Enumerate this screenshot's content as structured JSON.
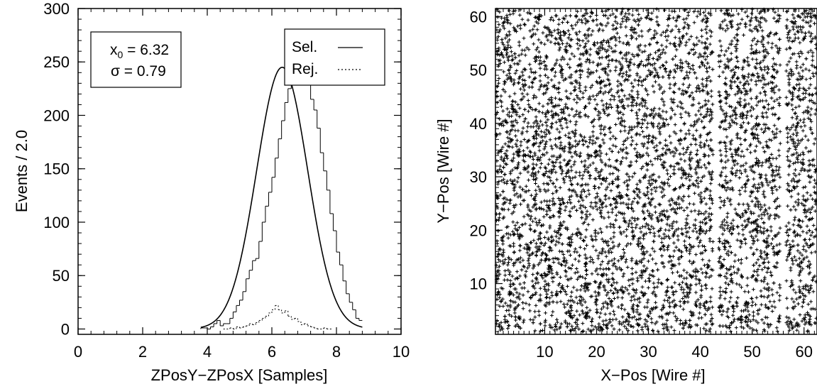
{
  "chart_data": [
    {
      "type": "histogram",
      "xlabel": "ZPosY−ZPosX [Samples]",
      "ylabel": "Events / 2.0",
      "xlim": [
        0,
        10
      ],
      "ylim": [
        -5,
        300
      ],
      "x_ticks": [
        0,
        2,
        4,
        6,
        8,
        10
      ],
      "x_tick_labels": [
        "0",
        "2",
        "4",
        "6",
        "8",
        "10"
      ],
      "y_ticks": [
        0,
        50,
        100,
        150,
        200,
        250,
        300
      ],
      "y_tick_labels": [
        "0",
        "50",
        "100",
        "150",
        "200",
        "250",
        "300"
      ],
      "stats_box": {
        "x0_symbol": "x",
        "x0_subscript": "0",
        "x0_text": " = 6.32",
        "sigma_text": "σ = 0.79"
      },
      "legend": {
        "position": "top-right",
        "entries": [
          {
            "label": "Sel.",
            "style": "solid"
          },
          {
            "label": "Rej.",
            "style": "dotted"
          }
        ]
      },
      "fit": {
        "name": "Sel.",
        "mean": 6.32,
        "sigma": 0.79,
        "amplitude": 245,
        "x_range": [
          3.8,
          8.8
        ]
      },
      "series": [
        {
          "name": "Sel.",
          "style": "histogram",
          "bin_width": 0.1,
          "x_start": 3.8,
          "values": [
            1,
            1,
            0,
            2,
            5,
            8,
            3,
            5,
            5,
            10,
            16,
            22,
            27,
            35,
            47,
            55,
            64,
            66,
            82,
            100,
            115,
            128,
            142,
            160,
            178,
            195,
            212,
            225,
            240,
            258,
            245,
            250,
            232,
            240,
            215,
            205,
            188,
            165,
            148,
            130,
            108,
            92,
            72,
            60,
            45,
            33,
            25,
            18,
            10,
            8
          ]
        },
        {
          "name": "Rej.",
          "style": "dotted",
          "bin_width": 0.1,
          "x_start": 4.5,
          "values": [
            0,
            0,
            1,
            0,
            2,
            1,
            2,
            3,
            5,
            4,
            6,
            8,
            10,
            12,
            15,
            18,
            22,
            18,
            15,
            17,
            12,
            9,
            10,
            7,
            4,
            5,
            3,
            2,
            1,
            0,
            0,
            1,
            0,
            0
          ]
        }
      ]
    },
    {
      "type": "scatter",
      "xlabel": "X−Pos [Wire #]",
      "ylabel": "Y−Pos [Wire #]",
      "xlim": [
        0.5,
        62.5
      ],
      "ylim": [
        0.5,
        61.5
      ],
      "x_ticks": [
        10,
        20,
        30,
        40,
        50,
        60
      ],
      "x_tick_labels": [
        "10",
        "20",
        "30",
        "40",
        "50",
        "60"
      ],
      "y_ticks": [
        10,
        20,
        30,
        40,
        50,
        60
      ],
      "y_tick_labels": [
        "10",
        "20",
        "30",
        "40",
        "50",
        "60"
      ],
      "marker": "+",
      "gaps_x": [
        43,
        56
      ],
      "n_points_shown": 6000
    }
  ]
}
